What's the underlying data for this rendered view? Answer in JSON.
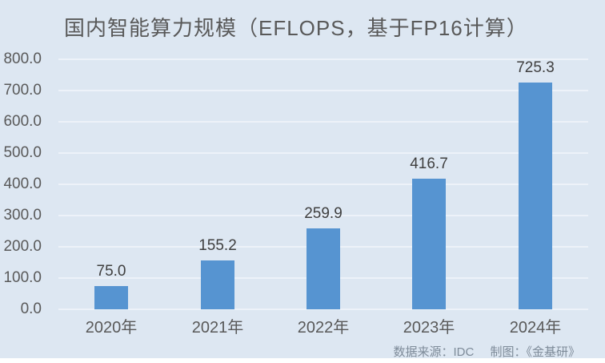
{
  "title": "国内智能算力规模（EFLOPS，基于FP16计算）",
  "footer": {
    "source_label": "数据来源：IDC",
    "credit_label": "制图：《金基研》"
  },
  "colors": {
    "background": "#dde7f2",
    "bar": "#5694d1",
    "title_text": "#595959",
    "axis_text": "#595959",
    "data_label_text": "#3f3f3f",
    "gridline": "#edf2f9",
    "footer_text": "#7e8b99"
  },
  "chart_data": {
    "type": "bar",
    "title": "国内智能算力规模（EFLOPS，基于FP16计算）",
    "categories": [
      "2020年",
      "2021年",
      "2022年",
      "2023年",
      "2024年"
    ],
    "values": [
      75.0,
      155.2,
      259.9,
      416.7,
      725.3
    ],
    "data_labels": [
      "75.0",
      "155.2",
      "259.9",
      "416.7",
      "725.3"
    ],
    "xlabel": "",
    "ylabel": "",
    "ylim": [
      0,
      800
    ],
    "ytick_step": 100,
    "ytick_labels": [
      "0.0",
      "100.0",
      "200.0",
      "300.0",
      "400.0",
      "500.0",
      "600.0",
      "700.0",
      "800.0"
    ],
    "grid": true,
    "legend": false,
    "source": "IDC",
    "credit": "《金基研》"
  }
}
